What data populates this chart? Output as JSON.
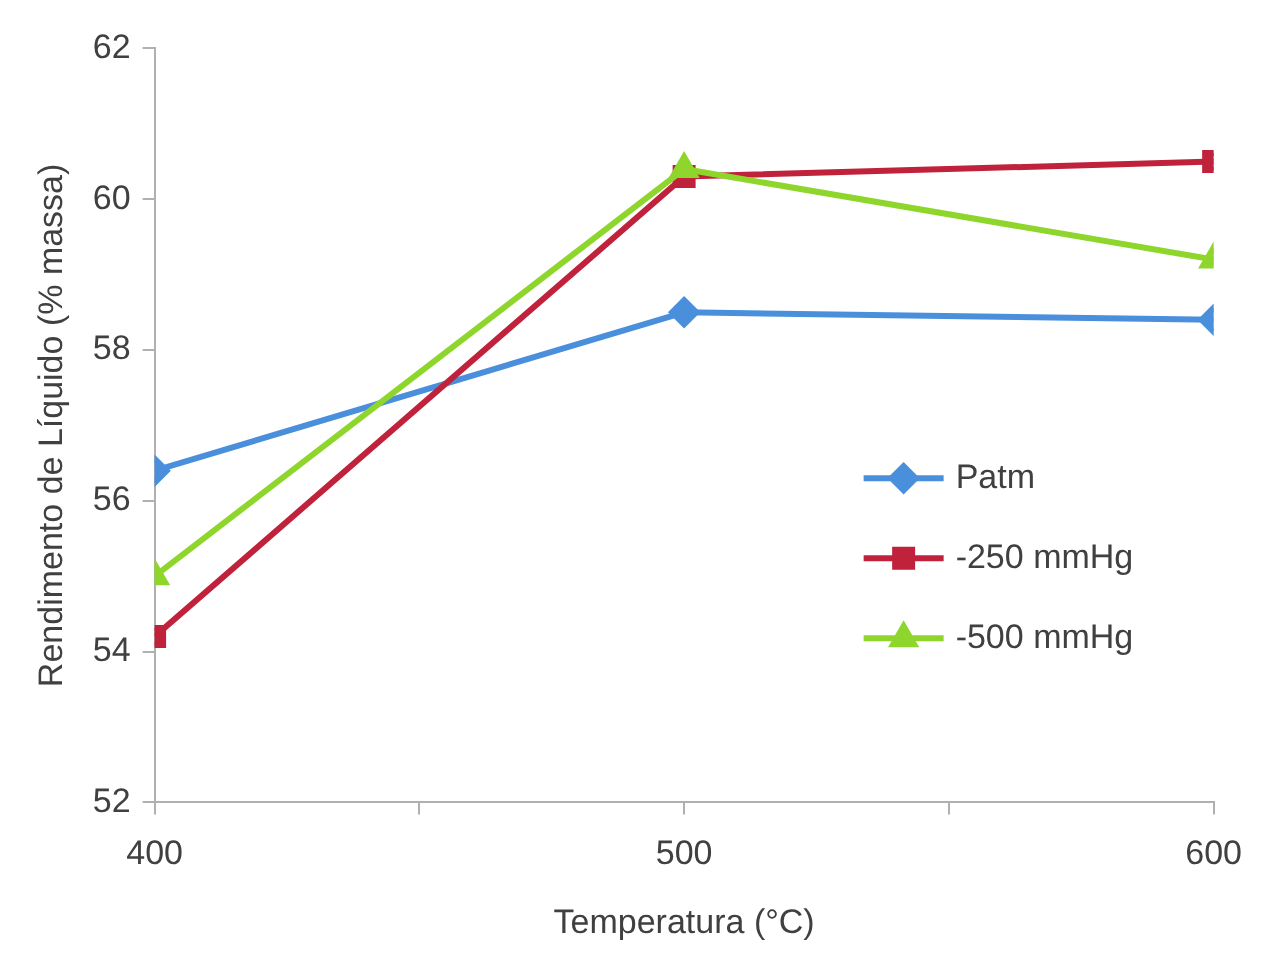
{
  "chart_data": {
    "type": "line",
    "xlabel": "Temperatura (°C)",
    "ylabel": "Rendimento de Líquido (% massa)",
    "x": [
      400,
      500,
      600
    ],
    "series": [
      {
        "name": "Patm",
        "color": "#4a8fdc",
        "values": [
          56.4,
          58.5,
          58.4
        ],
        "marker": "diamond"
      },
      {
        "name": "-250 mmHg",
        "color": "#c0223b",
        "values": [
          54.2,
          60.3,
          60.5
        ],
        "marker": "square"
      },
      {
        "name": "-500 mmHg",
        "color": "#8fd62c",
        "values": [
          55.0,
          60.4,
          59.2
        ],
        "marker": "triangle"
      }
    ],
    "xlim": [
      400,
      600
    ],
    "xticks": [
      400,
      {
        "value": 450,
        "label": null
      },
      500,
      {
        "value": 550,
        "label": null
      },
      600
    ],
    "ylim": [
      52,
      62
    ],
    "yticks": [
      52,
      54,
      56,
      58,
      60,
      62
    ],
    "grid": false,
    "legend": "right",
    "line_style": "solid"
  }
}
